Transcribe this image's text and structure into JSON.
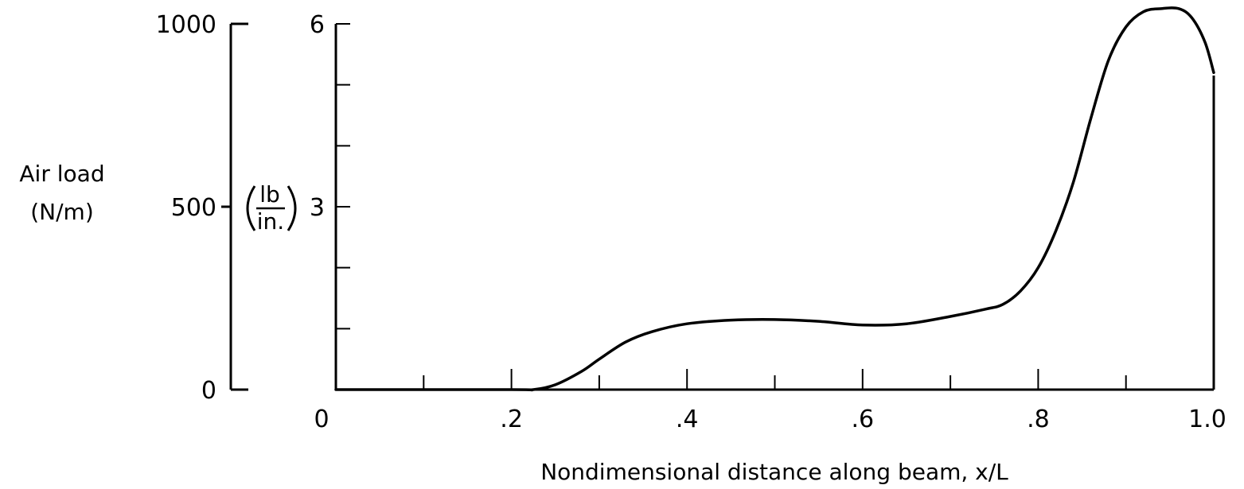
{
  "chart_data": {
    "type": "line",
    "xlabel": "Nondimensional distance along beam,  x/L",
    "ylabel": "Air load",
    "ylabel_units_si": "(N/m)",
    "ylabel_units_us_top": "lb",
    "ylabel_units_us_bottom": "in.",
    "xlim": [
      0,
      1.0
    ],
    "ylim_si": [
      0,
      1000
    ],
    "ylim_us": [
      0,
      6
    ],
    "x_tick_labels": [
      "0",
      ".2",
      ".4",
      ".6",
      ".8",
      "1.0"
    ],
    "y_tick_labels_si": [
      "0",
      "500",
      "1000"
    ],
    "y_tick_labels_us": [
      "3",
      "6"
    ],
    "grid": false,
    "series": [
      {
        "x": [
          0.0,
          0.2,
          0.225,
          0.25,
          0.28,
          0.3,
          0.33,
          0.36,
          0.4,
          0.45,
          0.5,
          0.55,
          0.6,
          0.65,
          0.7,
          0.74,
          0.76,
          0.78,
          0.8,
          0.82,
          0.84,
          0.86,
          0.88,
          0.9,
          0.92,
          0.94,
          0.96,
          0.975,
          0.99,
          1.0
        ],
        "y": [
          0.0,
          0.0,
          0.0,
          0.08,
          0.3,
          0.5,
          0.78,
          0.95,
          1.08,
          1.14,
          1.15,
          1.12,
          1.06,
          1.08,
          1.2,
          1.32,
          1.4,
          1.62,
          2.0,
          2.6,
          3.4,
          4.45,
          5.4,
          5.95,
          6.2,
          6.25,
          6.25,
          6.1,
          5.7,
          5.2
        ]
      }
    ]
  }
}
